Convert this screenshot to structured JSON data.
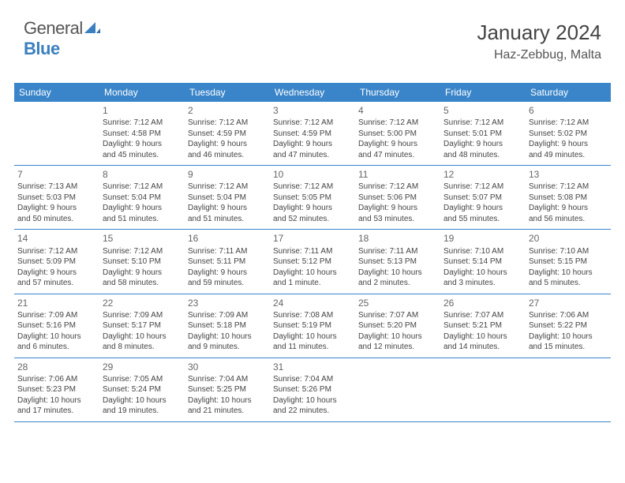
{
  "brand": {
    "name_gray": "General",
    "name_blue": "Blue"
  },
  "title": "January 2024",
  "location": "Haz-Zebbug, Malta",
  "colors": {
    "header_bg": "#3a85c9",
    "header_text": "#ffffff",
    "brand_blue": "#3a7fbf",
    "text": "#444444",
    "border": "#3a85c9",
    "background": "#ffffff"
  },
  "fonts": {
    "title_size": 26,
    "location_size": 16,
    "header_size": 12,
    "daynum_size": 12,
    "body_size": 10
  },
  "day_names": [
    "Sunday",
    "Monday",
    "Tuesday",
    "Wednesday",
    "Thursday",
    "Friday",
    "Saturday"
  ],
  "weeks": [
    [
      null,
      {
        "n": "1",
        "sr": "Sunrise: 7:12 AM",
        "ss": "Sunset: 4:58 PM",
        "dl1": "Daylight: 9 hours",
        "dl2": "and 45 minutes."
      },
      {
        "n": "2",
        "sr": "Sunrise: 7:12 AM",
        "ss": "Sunset: 4:59 PM",
        "dl1": "Daylight: 9 hours",
        "dl2": "and 46 minutes."
      },
      {
        "n": "3",
        "sr": "Sunrise: 7:12 AM",
        "ss": "Sunset: 4:59 PM",
        "dl1": "Daylight: 9 hours",
        "dl2": "and 47 minutes."
      },
      {
        "n": "4",
        "sr": "Sunrise: 7:12 AM",
        "ss": "Sunset: 5:00 PM",
        "dl1": "Daylight: 9 hours",
        "dl2": "and 47 minutes."
      },
      {
        "n": "5",
        "sr": "Sunrise: 7:12 AM",
        "ss": "Sunset: 5:01 PM",
        "dl1": "Daylight: 9 hours",
        "dl2": "and 48 minutes."
      },
      {
        "n": "6",
        "sr": "Sunrise: 7:12 AM",
        "ss": "Sunset: 5:02 PM",
        "dl1": "Daylight: 9 hours",
        "dl2": "and 49 minutes."
      }
    ],
    [
      {
        "n": "7",
        "sr": "Sunrise: 7:13 AM",
        "ss": "Sunset: 5:03 PM",
        "dl1": "Daylight: 9 hours",
        "dl2": "and 50 minutes."
      },
      {
        "n": "8",
        "sr": "Sunrise: 7:12 AM",
        "ss": "Sunset: 5:04 PM",
        "dl1": "Daylight: 9 hours",
        "dl2": "and 51 minutes."
      },
      {
        "n": "9",
        "sr": "Sunrise: 7:12 AM",
        "ss": "Sunset: 5:04 PM",
        "dl1": "Daylight: 9 hours",
        "dl2": "and 51 minutes."
      },
      {
        "n": "10",
        "sr": "Sunrise: 7:12 AM",
        "ss": "Sunset: 5:05 PM",
        "dl1": "Daylight: 9 hours",
        "dl2": "and 52 minutes."
      },
      {
        "n": "11",
        "sr": "Sunrise: 7:12 AM",
        "ss": "Sunset: 5:06 PM",
        "dl1": "Daylight: 9 hours",
        "dl2": "and 53 minutes."
      },
      {
        "n": "12",
        "sr": "Sunrise: 7:12 AM",
        "ss": "Sunset: 5:07 PM",
        "dl1": "Daylight: 9 hours",
        "dl2": "and 55 minutes."
      },
      {
        "n": "13",
        "sr": "Sunrise: 7:12 AM",
        "ss": "Sunset: 5:08 PM",
        "dl1": "Daylight: 9 hours",
        "dl2": "and 56 minutes."
      }
    ],
    [
      {
        "n": "14",
        "sr": "Sunrise: 7:12 AM",
        "ss": "Sunset: 5:09 PM",
        "dl1": "Daylight: 9 hours",
        "dl2": "and 57 minutes."
      },
      {
        "n": "15",
        "sr": "Sunrise: 7:12 AM",
        "ss": "Sunset: 5:10 PM",
        "dl1": "Daylight: 9 hours",
        "dl2": "and 58 minutes."
      },
      {
        "n": "16",
        "sr": "Sunrise: 7:11 AM",
        "ss": "Sunset: 5:11 PM",
        "dl1": "Daylight: 9 hours",
        "dl2": "and 59 minutes."
      },
      {
        "n": "17",
        "sr": "Sunrise: 7:11 AM",
        "ss": "Sunset: 5:12 PM",
        "dl1": "Daylight: 10 hours",
        "dl2": "and 1 minute."
      },
      {
        "n": "18",
        "sr": "Sunrise: 7:11 AM",
        "ss": "Sunset: 5:13 PM",
        "dl1": "Daylight: 10 hours",
        "dl2": "and 2 minutes."
      },
      {
        "n": "19",
        "sr": "Sunrise: 7:10 AM",
        "ss": "Sunset: 5:14 PM",
        "dl1": "Daylight: 10 hours",
        "dl2": "and 3 minutes."
      },
      {
        "n": "20",
        "sr": "Sunrise: 7:10 AM",
        "ss": "Sunset: 5:15 PM",
        "dl1": "Daylight: 10 hours",
        "dl2": "and 5 minutes."
      }
    ],
    [
      {
        "n": "21",
        "sr": "Sunrise: 7:09 AM",
        "ss": "Sunset: 5:16 PM",
        "dl1": "Daylight: 10 hours",
        "dl2": "and 6 minutes."
      },
      {
        "n": "22",
        "sr": "Sunrise: 7:09 AM",
        "ss": "Sunset: 5:17 PM",
        "dl1": "Daylight: 10 hours",
        "dl2": "and 8 minutes."
      },
      {
        "n": "23",
        "sr": "Sunrise: 7:09 AM",
        "ss": "Sunset: 5:18 PM",
        "dl1": "Daylight: 10 hours",
        "dl2": "and 9 minutes."
      },
      {
        "n": "24",
        "sr": "Sunrise: 7:08 AM",
        "ss": "Sunset: 5:19 PM",
        "dl1": "Daylight: 10 hours",
        "dl2": "and 11 minutes."
      },
      {
        "n": "25",
        "sr": "Sunrise: 7:07 AM",
        "ss": "Sunset: 5:20 PM",
        "dl1": "Daylight: 10 hours",
        "dl2": "and 12 minutes."
      },
      {
        "n": "26",
        "sr": "Sunrise: 7:07 AM",
        "ss": "Sunset: 5:21 PM",
        "dl1": "Daylight: 10 hours",
        "dl2": "and 14 minutes."
      },
      {
        "n": "27",
        "sr": "Sunrise: 7:06 AM",
        "ss": "Sunset: 5:22 PM",
        "dl1": "Daylight: 10 hours",
        "dl2": "and 15 minutes."
      }
    ],
    [
      {
        "n": "28",
        "sr": "Sunrise: 7:06 AM",
        "ss": "Sunset: 5:23 PM",
        "dl1": "Daylight: 10 hours",
        "dl2": "and 17 minutes."
      },
      {
        "n": "29",
        "sr": "Sunrise: 7:05 AM",
        "ss": "Sunset: 5:24 PM",
        "dl1": "Daylight: 10 hours",
        "dl2": "and 19 minutes."
      },
      {
        "n": "30",
        "sr": "Sunrise: 7:04 AM",
        "ss": "Sunset: 5:25 PM",
        "dl1": "Daylight: 10 hours",
        "dl2": "and 21 minutes."
      },
      {
        "n": "31",
        "sr": "Sunrise: 7:04 AM",
        "ss": "Sunset: 5:26 PM",
        "dl1": "Daylight: 10 hours",
        "dl2": "and 22 minutes."
      },
      null,
      null,
      null
    ]
  ]
}
